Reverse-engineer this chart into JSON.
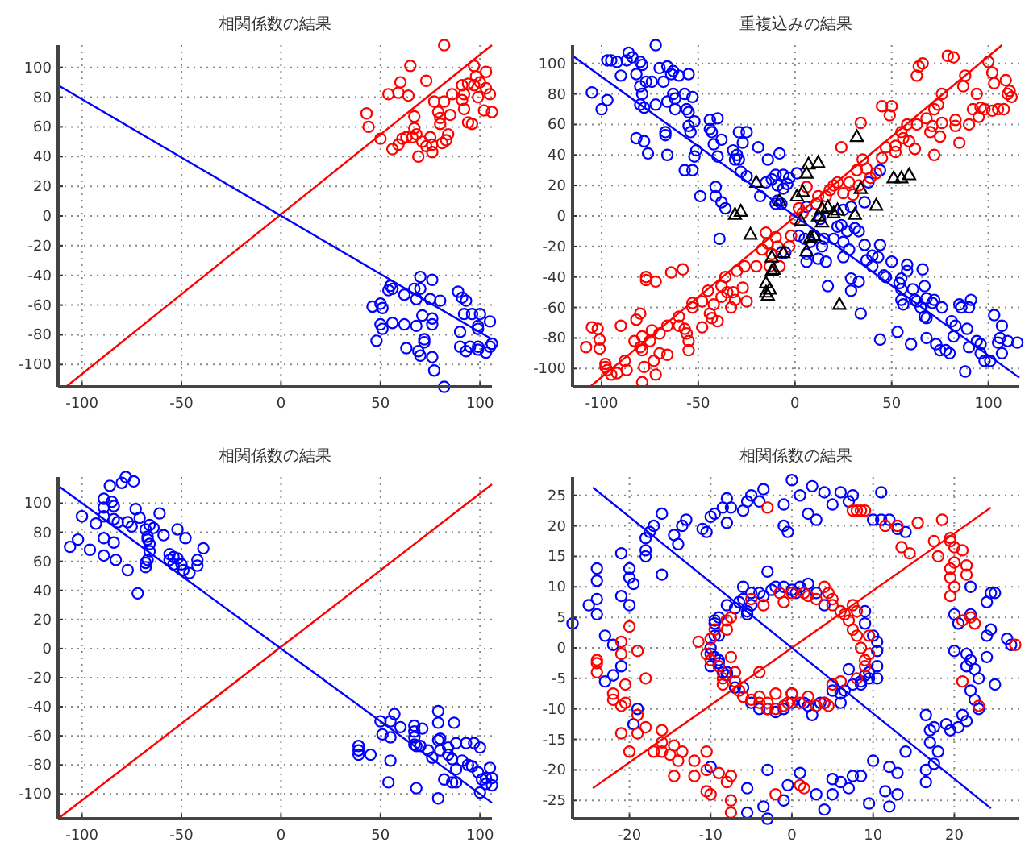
{
  "chart_data": [
    {
      "type": "scatter",
      "title": "相関係数の結果",
      "xlim": [
        -112,
        106
      ],
      "ylim": [
        -115,
        115
      ],
      "xticks": [
        -100,
        -50,
        0,
        50,
        100
      ],
      "yticks": [
        -100,
        -80,
        -60,
        -40,
        -20,
        0,
        20,
        40,
        60,
        80,
        100
      ],
      "grid": true,
      "marker": "circle",
      "series": [
        {
          "color": "#ff0000",
          "x": [
            82,
            65,
            97,
            103,
            60,
            73,
            98,
            94,
            91,
            100,
            103,
            105,
            54,
            59,
            64,
            77,
            82,
            86,
            92,
            91,
            99,
            43,
            44,
            50,
            56,
            59,
            61,
            63,
            66,
            67,
            67,
            68,
            69,
            71,
            73,
            75,
            76,
            80,
            80,
            81,
            83,
            84,
            85,
            92,
            94,
            96,
            102,
            106,
            97,
            76,
            79
          ],
          "values": [
            115,
            101,
            101,
            97,
            90,
            91,
            94,
            89,
            88,
            90,
            86,
            82,
            82,
            83,
            81,
            77,
            77,
            82,
            82,
            78,
            80,
            69,
            60,
            52,
            45,
            48,
            52,
            53,
            53,
            67,
            59,
            55,
            40,
            50,
            47,
            53,
            43,
            66,
            62,
            49,
            51,
            55,
            68,
            72,
            63,
            62,
            71,
            70,
            88,
            48,
            70
          ]
        },
        {
          "color": "#0000ff",
          "x": [
            70,
            76,
            55,
            54,
            56,
            67,
            70,
            62,
            68,
            75,
            80,
            89,
            91,
            93,
            46,
            50,
            51,
            92,
            96,
            100,
            105,
            50,
            51,
            56,
            62,
            68,
            71,
            76,
            76,
            90,
            99,
            99,
            72,
            72,
            48,
            63,
            69,
            70,
            76,
            90,
            93,
            95,
            99,
            99,
            103,
            105,
            106,
            77,
            82
          ],
          "values": [
            -41,
            -43,
            -47,
            -50,
            -49,
            -49,
            -49,
            -53,
            -56,
            -56,
            -57,
            -51,
            -55,
            -57,
            -61,
            -59,
            -62,
            -66,
            -66,
            -66,
            -71,
            -73,
            -76,
            -72,
            -73,
            -74,
            -67,
            -69,
            -73,
            -78,
            -74,
            -76,
            -83,
            -85,
            -84,
            -89,
            -91,
            -94,
            -95,
            -88,
            -91,
            -88,
            -88,
            -90,
            -92,
            -88,
            -86,
            -104,
            -115
          ]
        },
        {
          "type": "line",
          "color": "#ff0000",
          "marker": "none",
          "x": [
            -108,
            106
          ],
          "values": [
            -115,
            115
          ]
        },
        {
          "type": "line",
          "color": "#0000ff",
          "marker": "none",
          "x": [
            -112,
            106
          ],
          "values": [
            88,
            -83
          ]
        }
      ]
    },
    {
      "type": "scatter",
      "title": "重複込みの結果",
      "xlim": [
        -115,
        116
      ],
      "ylim": [
        -112,
        112
      ],
      "xticks": [
        -100,
        -50,
        0,
        50,
        100
      ],
      "yticks": [
        -100,
        -80,
        -60,
        -40,
        -20,
        0,
        20,
        40,
        60,
        80,
        100
      ],
      "grid": true,
      "marker": "circle",
      "series": [
        {
          "color": "#0000ff",
          "x": [
            -105,
            -100,
            -97,
            -97,
            -95,
            -92,
            -90,
            -86,
            -87,
            -84,
            -82,
            -80,
            -79,
            -80,
            -79,
            -80,
            -78,
            -77,
            -74,
            -72,
            -72,
            -70,
            -68,
            -66,
            -64,
            -63,
            -63,
            -62,
            -62,
            -66,
            -60,
            -57,
            -56,
            -55,
            -55,
            -53,
            -55,
            -54,
            -52,
            -51,
            -52,
            -44,
            -44,
            -43,
            -40,
            -42,
            -40,
            -38,
            -82,
            -78,
            -76,
            -67,
            -67,
            -66,
            -57,
            -53,
            -49,
            -41,
            -41,
            -38,
            -36,
            -32,
            -31,
            -30,
            -29,
            -28,
            -27,
            -25,
            -29,
            -25,
            -19,
            -18,
            -14,
            -15,
            -12,
            -10,
            -9,
            -8,
            -10,
            -6,
            -4,
            -39,
            -5,
            -7,
            -6,
            -3,
            1,
            -9,
            -7,
            2,
            5,
            6,
            6,
            8,
            10,
            12,
            13,
            14,
            16,
            17,
            15,
            20,
            22,
            25,
            25,
            27,
            28,
            29,
            29,
            33,
            34,
            31,
            33,
            36,
            37,
            40,
            40,
            43,
            44,
            44,
            46,
            47,
            50,
            53,
            54,
            55,
            55,
            55,
            56,
            58,
            58,
            60,
            61,
            62,
            63,
            65,
            66,
            67,
            67,
            68,
            68,
            68,
            71,
            72,
            73,
            75,
            76,
            78,
            80,
            81,
            82,
            83,
            85,
            86,
            88,
            89,
            90,
            90,
            91,
            94,
            96,
            96,
            98,
            101,
            103,
            105,
            106,
            107,
            107,
            110,
            115,
            44,
            38,
            29,
            25,
            36,
            6,
            24
          ],
          "values": [
            81,
            70,
            76,
            102,
            102,
            101,
            92,
            107,
            102,
            104,
            93,
            101,
            99,
            85,
            80,
            73,
            71,
            88,
            88,
            112,
            73,
            97,
            88,
            98,
            93,
            95,
            80,
            77,
            70,
            75,
            92,
            80,
            70,
            68,
            93,
            78,
            59,
            55,
            62,
            43,
            39,
            63,
            57,
            55,
            64,
            47,
            39,
            50,
            51,
            49,
            41,
            55,
            53,
            40,
            30,
            30,
            13,
            19,
            13,
            9,
            5,
            43,
            37,
            40,
            37,
            29,
            48,
            55,
            55,
            26,
            45,
            13,
            37,
            22,
            24,
            27,
            20,
            41,
            8,
            27,
            21,
            -15,
            -24,
            -24,
            18,
            25,
            28,
            10,
            8,
            -13,
            -15,
            -25,
            -30,
            -17,
            -13,
            -28,
            -2,
            -20,
            -30,
            -46,
            -15,
            -15,
            -7,
            -17,
            -27,
            -10,
            -22,
            -49,
            -41,
            -43,
            -64,
            -8,
            -10,
            -19,
            -29,
            -26,
            -33,
            -27,
            -81,
            -19,
            -39,
            -40,
            -30,
            -76,
            -44,
            -41,
            -48,
            -55,
            -58,
            -32,
            -36,
            -84,
            -48,
            -55,
            -56,
            -60,
            -35,
            -46,
            -66,
            -54,
            -80,
            -67,
            -57,
            -55,
            -84,
            -88,
            -60,
            -88,
            -90,
            -69,
            -79,
            -72,
            -58,
            -60,
            -102,
            -74,
            -60,
            -86,
            -55,
            -82,
            -90,
            -84,
            -95,
            -95,
            -65,
            -83,
            -80,
            -72,
            -90,
            -82,
            -83,
            30,
            22,
            6,
            4,
            9,
            6,
            -6
          ]
        },
        {
          "color": "#ff0000",
          "x": [
            -108,
            -105,
            -102,
            -101,
            -101,
            -98,
            -98,
            -97,
            -95,
            -92,
            -90,
            -88,
            -87,
            -83,
            -82,
            -80,
            -80,
            -79,
            -79,
            -78,
            -79,
            -77,
            -77,
            -75,
            -74,
            -73,
            -72,
            -70,
            -70,
            -72,
            -66,
            -66,
            -64,
            -60,
            -60,
            -58,
            -57,
            -56,
            -55,
            -55,
            -53,
            -53,
            -48,
            -48,
            -45,
            -44,
            -42,
            -43,
            -40,
            -38,
            -38,
            -36,
            -35,
            -33,
            -32,
            -30,
            -31,
            -27,
            -26,
            -25,
            -20,
            -17,
            -15,
            -14,
            -13,
            -12,
            -10,
            -9,
            -8,
            -3,
            -2,
            0,
            2,
            4,
            6,
            11,
            12,
            16,
            18,
            20,
            22,
            25,
            24,
            28,
            30,
            32,
            33,
            34,
            35,
            37,
            39,
            42,
            45,
            47,
            45,
            49,
            50,
            52,
            52,
            55,
            56,
            58,
            59,
            62,
            63,
            63,
            64,
            66,
            68,
            70,
            71,
            72,
            72,
            74,
            75,
            76,
            76,
            79,
            82,
            83,
            83,
            85,
            87,
            88,
            90,
            92,
            94,
            95,
            96,
            98,
            100,
            102,
            102,
            103,
            105,
            108,
            110,
            111,
            112,
            109
          ],
          "values": [
            -86,
            -73,
            -74,
            -81,
            -87,
            -97,
            -99,
            -101,
            -104,
            -103,
            -72,
            -95,
            -101,
            -82,
            -68,
            -64,
            -86,
            -88,
            -79,
            -99,
            -109,
            -42,
            -40,
            -82,
            -75,
            -95,
            -104,
            -77,
            -90,
            -43,
            -72,
            -91,
            -37,
            -66,
            -72,
            -35,
            -74,
            -77,
            -88,
            -82,
            -57,
            -60,
            -56,
            -73,
            -49,
            -64,
            -58,
            -67,
            -69,
            -46,
            -53,
            -40,
            -50,
            -60,
            -50,
            -36,
            -55,
            -47,
            -33,
            -56,
            -33,
            -22,
            -11,
            -18,
            -33,
            -25,
            -14,
            -20,
            -33,
            -20,
            -13,
            -2,
            5,
            2,
            19,
            8,
            13,
            13,
            17,
            20,
            22,
            15,
            45,
            22,
            14,
            30,
            20,
            61,
            37,
            31,
            25,
            28,
            38,
            45,
            72,
            66,
            72,
            42,
            46,
            55,
            51,
            60,
            49,
            44,
            60,
            92,
            98,
            100,
            64,
            55,
            59,
            70,
            40,
            73,
            52,
            61,
            80,
            105,
            104,
            63,
            59,
            48,
            85,
            92,
            60,
            70,
            80,
            65,
            71,
            70,
            101,
            94,
            69,
            87,
            70,
            70,
            80,
            82,
            78,
            89
          ]
        },
        {
          "color": "#000000",
          "marker": "triangle",
          "x": [
            -20,
            -28,
            -31,
            -23,
            -12,
            -15,
            -15,
            -14,
            -13,
            -11,
            -12,
            -8,
            -6,
            1,
            4,
            6,
            7,
            12,
            3,
            6,
            8,
            10,
            12,
            14,
            14,
            17,
            20,
            22,
            23,
            31,
            32,
            42,
            51,
            55,
            59,
            34
          ],
          "values": [
            22,
            3,
            1,
            -12,
            -27,
            -44,
            -50,
            -52,
            -48,
            -35,
            -36,
            10,
            -24,
            13,
            16,
            28,
            34,
            35,
            -3,
            -23,
            -14,
            -13,
            0,
            -4,
            5,
            6,
            2,
            4,
            -58,
            1,
            52,
            7,
            25,
            25,
            27,
            18
          ]
        },
        {
          "type": "line",
          "color": "#ff0000",
          "marker": "none",
          "x": [
            -106,
            107
          ],
          "values": [
            -112,
            112
          ]
        },
        {
          "type": "line",
          "color": "#0000ff",
          "marker": "none",
          "x": [
            -115,
            116
          ],
          "values": [
            105,
            -106
          ]
        }
      ]
    },
    {
      "type": "scatter",
      "title": "相関係数の結果",
      "xlim": [
        -112,
        106
      ],
      "ylim": [
        -117,
        118
      ],
      "xticks": [
        -100,
        -50,
        0,
        50,
        100
      ],
      "yticks": [
        -100,
        -80,
        -60,
        -40,
        -20,
        0,
        20,
        40,
        60,
        80,
        100
      ],
      "grid": true,
      "marker": "circle",
      "series": [
        {
          "color": "#0000ff",
          "x": [
            -78,
            -74,
            -80,
            -86,
            -89,
            -85,
            -89,
            -84,
            -100,
            -93,
            -89,
            -84,
            -82,
            -77,
            -75,
            -73,
            -71,
            -61,
            -66,
            -64,
            -68,
            -67,
            -67,
            -66,
            -66,
            -59,
            -52,
            -48,
            -106,
            -102,
            -96,
            -89,
            -89,
            -84,
            -83,
            -77,
            -72,
            -68,
            -68,
            -67,
            -56,
            -56,
            -54,
            -52,
            -54,
            -50,
            -49,
            -46,
            -42,
            -42,
            -39,
            39,
            39,
            39,
            45,
            50,
            51,
            55,
            55,
            55,
            54,
            57,
            60,
            67,
            67,
            67,
            67,
            68,
            70,
            71,
            68,
            74,
            76,
            79,
            79,
            79,
            80,
            80,
            84,
            84,
            86,
            87,
            88,
            88,
            82,
            86,
            88,
            91,
            93,
            94,
            96,
            97,
            99,
            100,
            101,
            100,
            103,
            103,
            105,
            106,
            106,
            79
          ],
          "values": [
            118,
            115,
            114,
            112,
            103,
            101,
            97,
            98,
            91,
            86,
            91,
            89,
            87,
            87,
            84,
            96,
            90,
            93,
            85,
            83,
            82,
            77,
            75,
            72,
            67,
            78,
            82,
            76,
            70,
            75,
            68,
            76,
            64,
            73,
            61,
            54,
            38,
            56,
            59,
            61,
            65,
            61,
            63,
            62,
            58,
            58,
            54,
            52,
            61,
            57,
            69,
            -67,
            -70,
            -73,
            -73,
            -50,
            -59,
            -50,
            -61,
            -77,
            -92,
            -45,
            -54,
            -53,
            -57,
            -61,
            -66,
            -67,
            -67,
            -55,
            -96,
            -70,
            -75,
            -43,
            -51,
            -63,
            -62,
            -70,
            -68,
            -73,
            -76,
            -51,
            -65,
            -83,
            -90,
            -92,
            -92,
            -77,
            -65,
            -80,
            -81,
            -65,
            -85,
            -68,
            -90,
            -99,
            -93,
            -89,
            -82,
            -89,
            -94,
            -103
          ]
        },
        {
          "type": "line",
          "color": "#ff0000",
          "marker": "none",
          "x": [
            -112,
            106
          ],
          "values": [
            -117,
            113
          ]
        },
        {
          "type": "line",
          "color": "#0000ff",
          "marker": "none",
          "x": [
            -112,
            106
          ],
          "values": [
            112,
            -106
          ]
        }
      ]
    },
    {
      "type": "scatter",
      "title": "相関係数の結果",
      "xlim": [
        -27,
        28
      ],
      "ylim": [
        -28,
        28
      ],
      "xticks": [
        -20,
        -10,
        0,
        10,
        20
      ],
      "yticks": [
        -25,
        -20,
        -15,
        -10,
        -5,
        0,
        5,
        10,
        15,
        20,
        25
      ],
      "grid": true,
      "marker": "circle",
      "series": [
        {
          "color": "#0000ff",
          "x": [
            -27,
            -25,
            -24,
            -24,
            -24,
            -24,
            -23,
            -22,
            -22,
            -23,
            -21,
            -21,
            -21,
            -20,
            -20,
            -20,
            -19.5,
            -19,
            -19.5,
            -18,
            -18,
            -18,
            -17.5,
            -17,
            -16,
            -16,
            -14.5,
            -14,
            -13.5,
            -13,
            -11,
            -10.5,
            -10,
            -9.5,
            -8.5,
            -8,
            -8,
            -7.5,
            -6,
            -5.5,
            -5,
            -4,
            -3.5,
            -1,
            -1,
            -0.5,
            0,
            1,
            2,
            2.5,
            3,
            4,
            5,
            6,
            7,
            7.5,
            10,
            11,
            11,
            12,
            13,
            14,
            20,
            20,
            20.5,
            21.5,
            21.5,
            22,
            22,
            22,
            22.5,
            23,
            22,
            22.5,
            23,
            24,
            24,
            24.5,
            24,
            24.5,
            25,
            25,
            26.5,
            27,
            21,
            21.5,
            20.5,
            19.5,
            19,
            18,
            17.5,
            17,
            17,
            17.5,
            16.5,
            16.5,
            16.5,
            14,
            13,
            12,
            11.5,
            12,
            13,
            10,
            9.5,
            8.5,
            7,
            7.5,
            6,
            5,
            5,
            4,
            3,
            1,
            -0.5,
            -1,
            -3,
            -3.5,
            -3,
            -5.5,
            -5.5,
            -10,
            -10,
            -10,
            -10,
            -9.5,
            -9.5,
            -9.5,
            -9.5,
            -9,
            -9,
            -9,
            -8.5,
            -8,
            -8,
            -7,
            -6.5,
            -6,
            -6,
            -5.5,
            -5.5,
            -5,
            -5,
            -4,
            -3.5,
            -3,
            -2.5,
            -2,
            -1,
            0,
            0.5,
            1,
            2,
            3,
            4,
            9,
            9,
            10,
            10.5,
            10.5,
            10.5,
            10.5,
            9.5,
            9.5,
            9,
            8.5,
            8.5,
            7.5,
            7,
            6.5,
            6,
            6,
            5,
            4,
            3.5,
            2.5,
            2,
            1.5,
            0,
            0,
            -1,
            -2,
            -3,
            -4,
            -5,
            -6,
            -7,
            -8,
            -9
          ],
          "values": [
            4,
            7,
            13,
            11,
            8,
            5.5,
            2,
            0.5,
            -4.5,
            -5.5,
            -3,
            8.5,
            15.5,
            13,
            11.5,
            7,
            10.5,
            -10,
            -12.5,
            18,
            16,
            15,
            19,
            20,
            22,
            12,
            18.5,
            17,
            20,
            21,
            19.5,
            19,
            21.5,
            22,
            23,
            20.5,
            24.5,
            23,
            22.5,
            24,
            25,
            24,
            26,
            20,
            23.5,
            19,
            27.5,
            25,
            22,
            26.5,
            21,
            25.5,
            23.5,
            25.5,
            24,
            25,
            21,
            25.5,
            21,
            21,
            19.5,
            19,
            -0.5,
            5.5,
            4,
            -1,
            -3,
            10,
            5.5,
            -2,
            -3.5,
            -5,
            -7,
            -8.5,
            -10,
            -1.5,
            2,
            3,
            7.5,
            9,
            9,
            -6,
            1.5,
            0.5,
            -11,
            -12,
            -13,
            -13.5,
            -12.5,
            -17,
            -19,
            -13.5,
            -15.5,
            -13,
            -11,
            -20,
            -22,
            -17,
            -20.5,
            -19.5,
            -23.5,
            -26,
            -24,
            -18.5,
            -25.5,
            -21,
            -23,
            -21,
            -22,
            -21.5,
            -24,
            -26.5,
            -24,
            -20.5,
            -22.5,
            -25,
            -20,
            -26,
            -28,
            -23,
            -27,
            -19.5,
            -3,
            0,
            -1,
            -1.5,
            2,
            4,
            4.5,
            5,
            2,
            -2,
            -4,
            -4.5,
            7,
            6.5,
            7.5,
            8,
            10,
            6,
            5.5,
            7,
            9,
            9,
            8.5,
            12.5,
            9.5,
            10,
            10,
            9.5,
            9,
            10,
            10.5,
            9,
            7,
            6,
            4,
            2,
            1,
            -0.5,
            -3,
            -5,
            -4,
            -5,
            -4.5,
            -5.5,
            -6,
            -6,
            -3.5,
            -7,
            -7.5,
            -9,
            -7,
            -9,
            -9,
            -11,
            -9.5,
            -9,
            -9,
            -7.5,
            -10,
            -10.5,
            -10,
            -10,
            -9,
            -6.5,
            -6.5,
            -4,
            -2.5
          ]
        },
        {
          "color": "#ff0000",
          "x": [
            -24,
            -24,
            -24,
            -22,
            -22,
            -21,
            -21,
            -20.5,
            -21,
            -20.5,
            -21,
            -20,
            -20,
            -19,
            -19,
            -19,
            -18,
            -18,
            -17,
            -16,
            -16,
            -16,
            -15,
            -14.5,
            -14.5,
            -14,
            -13.5,
            -12,
            -12,
            -11.5,
            -10.5,
            -10.5,
            -10.5,
            -10,
            -9,
            -8,
            -7.5,
            -7.5,
            -7.5,
            -3,
            -2,
            1,
            1.5,
            7.5,
            8,
            8.5,
            9,
            11.5,
            13,
            13.5,
            14.5,
            15.5,
            17.5,
            18,
            18.5,
            19.5,
            19.5,
            20,
            20,
            19.5,
            19.5,
            20,
            19.5,
            21,
            21.5,
            21.5,
            21,
            22,
            22.5,
            21,
            23,
            27.5,
            -10.5,
            -10,
            -10,
            -9.5,
            -9,
            -8.5,
            -8.5,
            -8,
            -8,
            -7.5,
            -7.5,
            -7,
            -7,
            -6.5,
            -6,
            -5,
            -5,
            -4,
            -4,
            -4,
            -3.5,
            -3,
            -3,
            -2,
            -1.5,
            -1,
            -1,
            -0.5,
            0,
            0,
            1,
            1.5,
            2,
            2,
            3,
            3,
            4,
            4,
            4.5,
            5,
            5,
            5,
            6,
            6.5,
            7,
            7.5,
            7.5,
            8,
            8.5,
            9,
            9,
            9.5,
            9.5,
            8,
            8,
            6,
            4.5,
            -2
          ],
          "values": [
            -2,
            -2.5,
            -4,
            -7.5,
            -8.5,
            1,
            -1,
            -6,
            -9.5,
            -9,
            -14,
            -17,
            3.5,
            -0.5,
            -11,
            -14,
            -5,
            -13,
            -17,
            -13.5,
            -15.5,
            -17,
            -17.5,
            -21,
            -16,
            -18.5,
            -17,
            -18.5,
            -21,
            1,
            -17,
            -20,
            -23.5,
            -24,
            -20.5,
            -22,
            -21,
            -25,
            -27,
            23,
            -24,
            -22.5,
            -23,
            22.5,
            22.5,
            22.5,
            22.5,
            20,
            20,
            16.5,
            15.5,
            20.5,
            17.5,
            15,
            21,
            18,
            17.5,
            16.5,
            14,
            13,
            11.5,
            10,
            8.5,
            16,
            13.5,
            12,
            4.5,
            5,
            4,
            -5.5,
            -9.5,
            0.5,
            -1,
            -2,
            1.5,
            3,
            -3,
            -5,
            -6,
            3,
            4.5,
            5,
            -1.5,
            -4,
            -5.5,
            -7,
            -8,
            -8.5,
            8,
            -4,
            -8,
            -9,
            7,
            -9,
            -10,
            -10,
            9,
            7.5,
            -9.5,
            -9,
            9,
            -7.5,
            -9,
            9,
            8.5,
            -8,
            8,
            -9.5,
            10,
            -9,
            9,
            8,
            7,
            -6,
            6,
            5.5,
            4.5,
            7,
            3,
            2,
            0,
            -3,
            -2,
            -1,
            2,
            6,
            -5,
            -5.5,
            -9.5,
            -7.5
          ]
        },
        {
          "type": "line",
          "color": "#ff0000",
          "marker": "none",
          "x": [
            -24.5,
            24.5
          ],
          "values": [
            -23,
            23
          ]
        },
        {
          "type": "line",
          "color": "#0000ff",
          "marker": "none",
          "x": [
            -24.5,
            24.5
          ],
          "values": [
            26.3,
            -26.3
          ]
        }
      ]
    }
  ]
}
